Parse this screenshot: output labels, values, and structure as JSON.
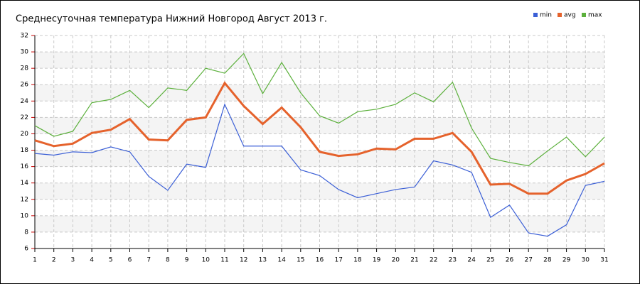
{
  "chart_data": {
    "type": "line",
    "title": "Среднесуточная температура Нижний Новгород  Август 2013 г.",
    "x": [
      1,
      2,
      3,
      4,
      5,
      6,
      7,
      8,
      9,
      10,
      11,
      12,
      13,
      14,
      15,
      16,
      17,
      18,
      19,
      20,
      21,
      22,
      23,
      24,
      25,
      26,
      27,
      28,
      29,
      30,
      31
    ],
    "xlim": [
      1,
      31
    ],
    "xticks": [
      1,
      2,
      3,
      4,
      5,
      6,
      7,
      8,
      9,
      10,
      11,
      12,
      13,
      14,
      15,
      16,
      17,
      18,
      19,
      20,
      21,
      22,
      23,
      24,
      25,
      26,
      27,
      28,
      29,
      30,
      31
    ],
    "ylim": [
      6,
      32
    ],
    "yticks": [
      6,
      8,
      10,
      12,
      14,
      16,
      18,
      20,
      22,
      24,
      26,
      28,
      30,
      32
    ],
    "grid": true,
    "legend": "top-right",
    "series": [
      {
        "name": "min",
        "color": "#3b5fd6",
        "values": [
          17.6,
          17.4,
          17.8,
          17.7,
          18.4,
          17.8,
          14.8,
          13.1,
          16.3,
          15.9,
          23.6,
          18.5,
          18.5,
          18.5,
          15.6,
          14.9,
          13.2,
          12.2,
          12.7,
          13.2,
          13.5,
          16.7,
          16.2,
          15.3,
          9.8,
          11.3,
          7.9,
          7.5,
          8.9,
          13.7,
          14.2
        ]
      },
      {
        "name": "avg",
        "color": "#e5622c",
        "values": [
          19.2,
          18.5,
          18.8,
          20.1,
          20.5,
          21.8,
          19.3,
          19.2,
          21.7,
          22.0,
          26.2,
          23.4,
          21.2,
          23.2,
          20.8,
          17.8,
          17.3,
          17.5,
          18.2,
          18.1,
          19.4,
          19.4,
          20.1,
          17.8,
          13.8,
          13.9,
          12.7,
          12.7,
          14.3,
          15.1,
          16.4
        ]
      },
      {
        "name": "max",
        "color": "#5cb03c",
        "values": [
          21.0,
          19.7,
          20.3,
          23.8,
          24.2,
          25.3,
          23.2,
          25.6,
          25.3,
          28.0,
          27.4,
          29.8,
          24.9,
          28.7,
          25.0,
          22.2,
          21.3,
          22.7,
          23.0,
          23.6,
          25.0,
          23.9,
          26.3,
          20.7,
          17.0,
          16.5,
          16.1,
          17.9,
          19.6,
          17.2,
          19.6
        ]
      }
    ]
  }
}
